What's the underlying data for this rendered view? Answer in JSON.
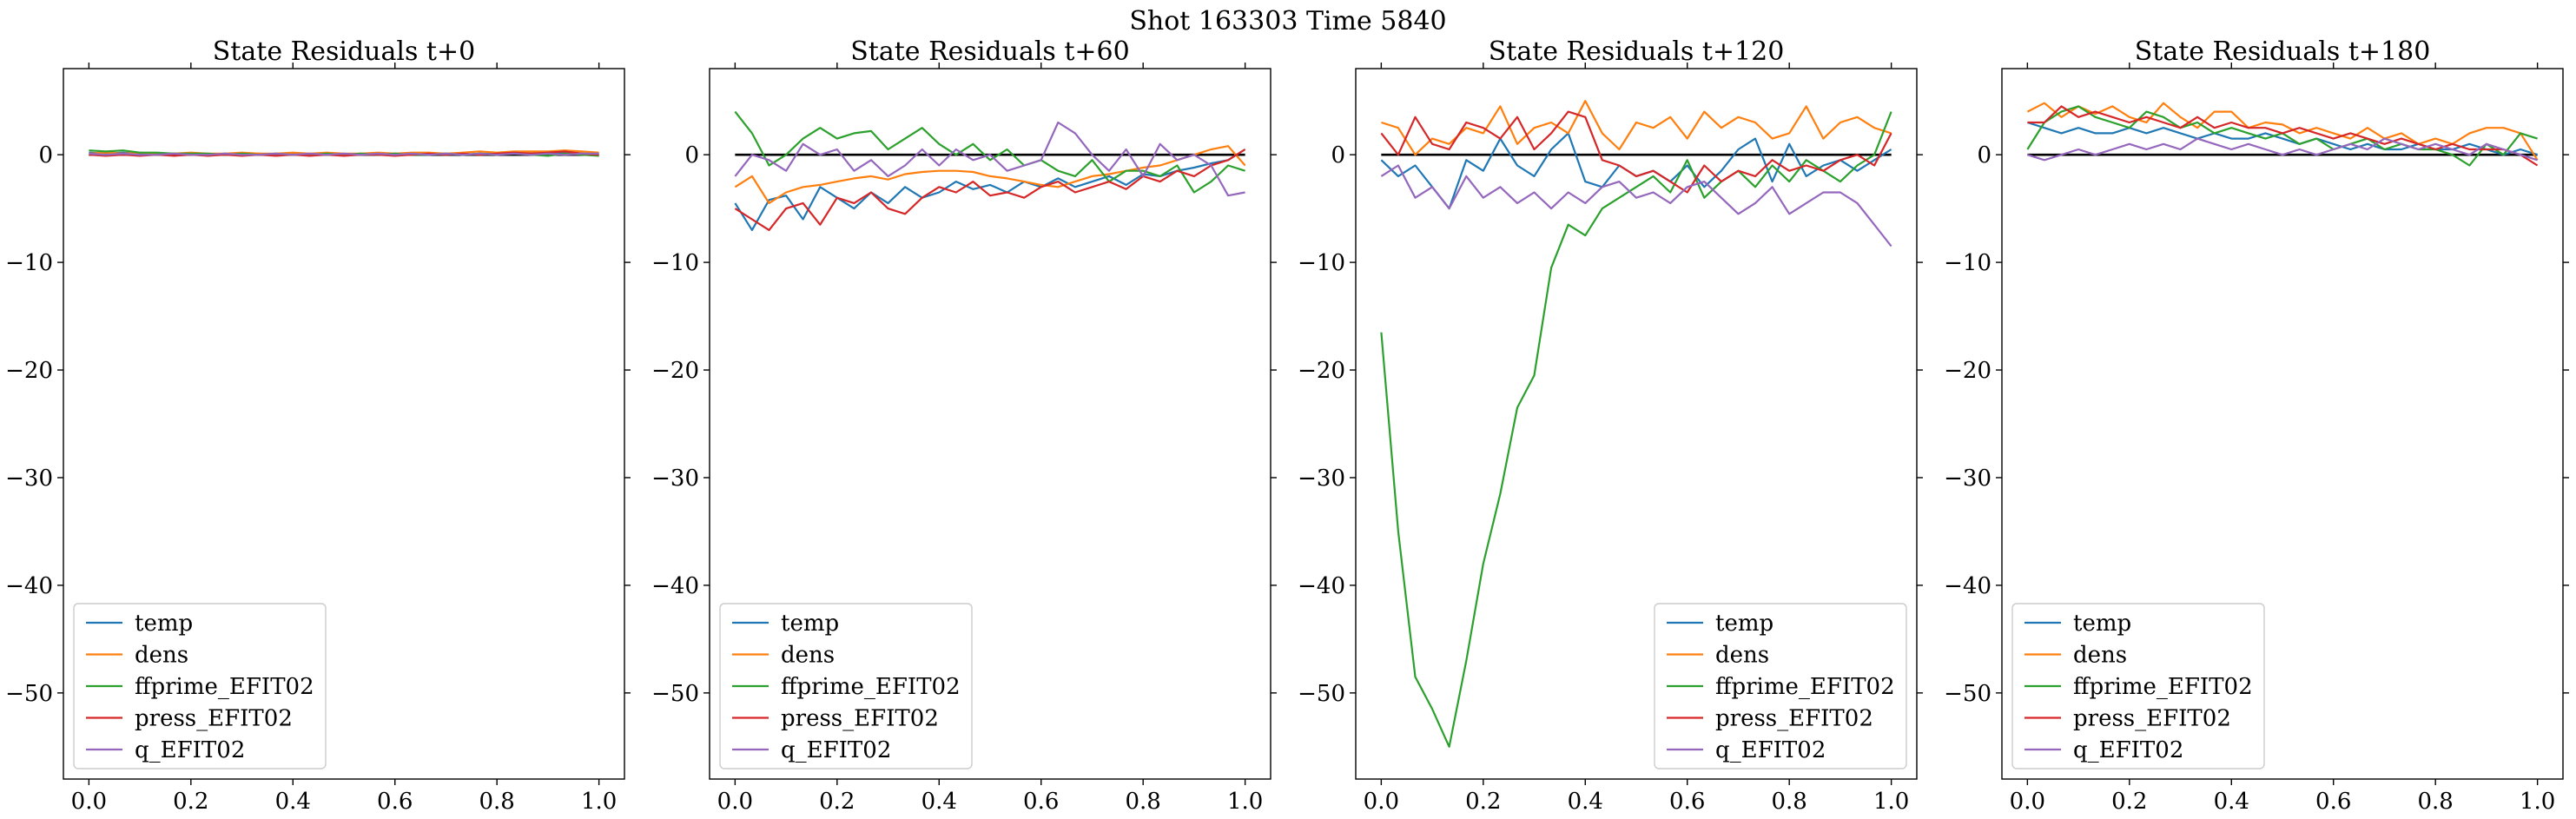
{
  "figure": {
    "suptitle": "Shot 163303   Time 5840"
  },
  "chart_data": [
    {
      "type": "line",
      "title": "State Residuals t+0",
      "xlabel": "",
      "ylabel": "",
      "xlim": [
        -0.05,
        1.05
      ],
      "ylim": [
        -58,
        8
      ],
      "xticks": [
        0.0,
        0.2,
        0.4,
        0.6,
        0.8,
        1.0
      ],
      "xtick_labels": [
        "0.0",
        "0.2",
        "0.4",
        "0.6",
        "0.8",
        "1.0"
      ],
      "yticks": [
        0,
        -10,
        -20,
        -30,
        -40,
        -50
      ],
      "ytick_labels": [
        "0",
        "−10",
        "−20",
        "−30",
        "−40",
        "−50"
      ],
      "grid": false,
      "legend_position": "lower-left",
      "zero_line": true,
      "x": [
        0.0,
        0.0333,
        0.0667,
        0.1,
        0.1333,
        0.1667,
        0.2,
        0.2333,
        0.2667,
        0.3,
        0.3333,
        0.3667,
        0.4,
        0.4333,
        0.4667,
        0.5,
        0.5333,
        0.5667,
        0.6,
        0.6333,
        0.6667,
        0.7,
        0.7333,
        0.7667,
        0.8,
        0.8333,
        0.8667,
        0.9,
        0.9333,
        0.9667,
        1.0
      ],
      "series": [
        {
          "name": "temp",
          "color": "#1f77b4",
          "values": [
            0.2,
            0.1,
            0.2,
            0.1,
            0.0,
            0.1,
            0.1,
            0.0,
            0.1,
            0.0,
            0.1,
            0.0,
            0.1,
            0.0,
            0.1,
            0.0,
            0.1,
            0.0,
            0.1,
            0.0,
            0.1,
            0.1,
            0.0,
            0.1,
            0.1,
            0.2,
            0.1,
            0.2,
            0.2,
            0.1,
            0.1
          ]
        },
        {
          "name": "dens",
          "color": "#ff7f0e",
          "values": [
            0.1,
            0.2,
            0.1,
            0.2,
            0.1,
            0.1,
            0.2,
            0.1,
            0.1,
            0.2,
            0.1,
            0.1,
            0.2,
            0.1,
            0.2,
            0.1,
            0.1,
            0.2,
            0.1,
            0.2,
            0.2,
            0.1,
            0.2,
            0.3,
            0.2,
            0.3,
            0.3,
            0.3,
            0.4,
            0.3,
            0.2
          ]
        },
        {
          "name": "ffprime_EFIT02",
          "color": "#2ca02c",
          "values": [
            0.4,
            0.3,
            0.4,
            0.2,
            0.2,
            0.1,
            0.1,
            0.1,
            0.0,
            0.1,
            0.0,
            0.1,
            0.0,
            0.0,
            0.1,
            0.0,
            0.1,
            0.0,
            0.1,
            0.0,
            0.0,
            0.1,
            0.0,
            0.1,
            0.0,
            0.1,
            0.0,
            -0.1,
            0.1,
            0.0,
            -0.1
          ]
        },
        {
          "name": "press_EFIT02",
          "color": "#d62728",
          "values": [
            0.0,
            -0.1,
            0.0,
            -0.1,
            0.0,
            -0.1,
            0.0,
            -0.1,
            0.0,
            -0.1,
            0.0,
            -0.1,
            0.0,
            -0.1,
            0.0,
            -0.1,
            0.0,
            0.0,
            -0.1,
            0.0,
            0.1,
            0.0,
            0.1,
            0.0,
            0.1,
            0.2,
            0.1,
            0.2,
            0.3,
            0.1,
            0.0
          ]
        },
        {
          "name": "q_EFIT02",
          "color": "#9467bd",
          "values": [
            0.1,
            0.0,
            0.1,
            0.0,
            0.0,
            0.1,
            0.0,
            0.0,
            0.1,
            0.0,
            0.0,
            0.1,
            0.0,
            0.1,
            0.0,
            0.1,
            0.0,
            0.1,
            0.0,
            0.1,
            0.0,
            0.1,
            0.0,
            0.1,
            0.0,
            0.1,
            0.0,
            0.1,
            0.0,
            0.1,
            0.1
          ]
        }
      ]
    },
    {
      "type": "line",
      "title": "State Residuals t+60",
      "xlabel": "",
      "ylabel": "",
      "xlim": [
        -0.05,
        1.05
      ],
      "ylim": [
        -58,
        8
      ],
      "xticks": [
        0.0,
        0.2,
        0.4,
        0.6,
        0.8,
        1.0
      ],
      "xtick_labels": [
        "0.0",
        "0.2",
        "0.4",
        "0.6",
        "0.8",
        "1.0"
      ],
      "yticks": [
        0,
        -10,
        -20,
        -30,
        -40,
        -50
      ],
      "ytick_labels": [
        "0",
        "−10",
        "−20",
        "−30",
        "−40",
        "−50"
      ],
      "grid": false,
      "legend_position": "lower-left",
      "zero_line": true,
      "x": [
        0.0,
        0.0333,
        0.0667,
        0.1,
        0.1333,
        0.1667,
        0.2,
        0.2333,
        0.2667,
        0.3,
        0.3333,
        0.3667,
        0.4,
        0.4333,
        0.4667,
        0.5,
        0.5333,
        0.5667,
        0.6,
        0.6333,
        0.6667,
        0.7,
        0.7333,
        0.7667,
        0.8,
        0.8333,
        0.8667,
        0.9,
        0.9333,
        0.9667,
        1.0
      ],
      "series": [
        {
          "name": "temp",
          "color": "#1f77b4",
          "values": [
            -4.5,
            -7.0,
            -4.2,
            -3.8,
            -6.0,
            -3.0,
            -4.0,
            -5.0,
            -3.5,
            -4.5,
            -3.0,
            -4.0,
            -3.5,
            -2.5,
            -3.2,
            -2.8,
            -3.5,
            -2.5,
            -3.0,
            -2.2,
            -3.0,
            -2.5,
            -2.0,
            -2.8,
            -1.8,
            -2.0,
            -1.5,
            -1.2,
            -0.8,
            -0.5,
            0.5
          ]
        },
        {
          "name": "dens",
          "color": "#ff7f0e",
          "values": [
            -3.0,
            -2.0,
            -4.5,
            -3.5,
            -3.0,
            -2.8,
            -2.5,
            -2.2,
            -2.0,
            -2.3,
            -1.8,
            -1.6,
            -1.5,
            -1.5,
            -1.6,
            -2.0,
            -2.2,
            -2.5,
            -2.8,
            -3.0,
            -2.5,
            -2.0,
            -1.8,
            -1.5,
            -1.2,
            -1.0,
            -0.5,
            0.0,
            0.5,
            0.8,
            -1.0
          ]
        },
        {
          "name": "ffprime_EFIT02",
          "color": "#2ca02c",
          "values": [
            4.0,
            2.0,
            -1.0,
            0.0,
            1.5,
            2.5,
            1.5,
            2.0,
            2.2,
            0.5,
            1.5,
            2.5,
            1.0,
            0.0,
            1.0,
            -0.5,
            0.5,
            -1.0,
            -0.5,
            -1.5,
            -2.0,
            -0.5,
            -2.5,
            -1.5,
            -1.5,
            -2.0,
            -1.0,
            -3.5,
            -2.5,
            -1.0,
            -1.5
          ]
        },
        {
          "name": "press_EFIT02",
          "color": "#d62728",
          "values": [
            -5.0,
            -6.0,
            -7.0,
            -5.0,
            -4.5,
            -6.5,
            -4.0,
            -4.5,
            -3.5,
            -5.0,
            -5.5,
            -4.0,
            -3.0,
            -3.5,
            -2.5,
            -3.8,
            -3.5,
            -4.0,
            -3.0,
            -2.5,
            -3.5,
            -3.0,
            -2.5,
            -3.2,
            -2.0,
            -2.5,
            -1.5,
            -2.0,
            -1.0,
            -0.5,
            0.5
          ]
        },
        {
          "name": "q_EFIT02",
          "color": "#9467bd",
          "values": [
            -2.0,
            0.0,
            -0.5,
            -1.5,
            1.0,
            0.0,
            0.5,
            -1.5,
            -0.5,
            -2.0,
            -1.0,
            0.5,
            -1.0,
            0.5,
            -0.5,
            0.0,
            -1.5,
            -1.0,
            -0.5,
            3.0,
            2.0,
            0.0,
            -1.5,
            0.5,
            -2.0,
            1.0,
            -0.5,
            0.0,
            -1.0,
            -3.8,
            -3.5
          ]
        }
      ]
    },
    {
      "type": "line",
      "title": "State Residuals t+120",
      "xlabel": "",
      "ylabel": "",
      "xlim": [
        -0.05,
        1.05
      ],
      "ylim": [
        -58,
        8
      ],
      "xticks": [
        0.0,
        0.2,
        0.4,
        0.6,
        0.8,
        1.0
      ],
      "xtick_labels": [
        "0.0",
        "0.2",
        "0.4",
        "0.6",
        "0.8",
        "1.0"
      ],
      "yticks": [
        0,
        -10,
        -20,
        -30,
        -40,
        -50
      ],
      "ytick_labels": [
        "0",
        "−10",
        "−20",
        "−30",
        "−40",
        "−50"
      ],
      "grid": false,
      "legend_position": "lower-right",
      "zero_line": true,
      "x": [
        0.0,
        0.0333,
        0.0667,
        0.1,
        0.1333,
        0.1667,
        0.2,
        0.2333,
        0.2667,
        0.3,
        0.3333,
        0.3667,
        0.4,
        0.4333,
        0.4667,
        0.5,
        0.5333,
        0.5667,
        0.6,
        0.6333,
        0.6667,
        0.7,
        0.7333,
        0.7667,
        0.8,
        0.8333,
        0.8667,
        0.9,
        0.9333,
        0.9667,
        1.0
      ],
      "series": [
        {
          "name": "temp",
          "color": "#1f77b4",
          "values": [
            -0.5,
            -2.0,
            -1.0,
            -3.0,
            -5.0,
            -0.5,
            -1.5,
            1.5,
            -1.0,
            -2.0,
            0.5,
            2.0,
            -2.5,
            -3.0,
            -1.0,
            -2.0,
            -1.5,
            -2.5,
            -1.0,
            -3.0,
            -1.5,
            0.5,
            1.5,
            -2.5,
            1.0,
            -2.0,
            -1.0,
            -0.5,
            -1.5,
            -0.5,
            0.5
          ]
        },
        {
          "name": "dens",
          "color": "#ff7f0e",
          "values": [
            3.0,
            2.5,
            0.0,
            1.5,
            1.0,
            2.5,
            2.0,
            4.5,
            1.0,
            2.5,
            3.0,
            2.0,
            5.0,
            2.0,
            0.5,
            3.0,
            2.5,
            3.5,
            1.5,
            4.0,
            2.5,
            3.5,
            3.0,
            1.5,
            2.0,
            4.5,
            1.5,
            3.0,
            3.5,
            2.5,
            2.0
          ]
        },
        {
          "name": "ffprime_EFIT02",
          "color": "#2ca02c",
          "values": [
            -16.5,
            -35.0,
            -48.5,
            -51.5,
            -55.0,
            -47.0,
            -38.0,
            -31.5,
            -23.5,
            -20.5,
            -10.5,
            -6.5,
            -7.5,
            -5.0,
            -4.0,
            -3.0,
            -2.0,
            -3.5,
            -0.5,
            -4.0,
            -2.5,
            -1.5,
            -3.0,
            -1.0,
            -2.5,
            -0.5,
            -1.5,
            -2.5,
            -1.0,
            0.0,
            4.0
          ]
        },
        {
          "name": "press_EFIT02",
          "color": "#d62728",
          "values": [
            2.0,
            0.0,
            3.5,
            1.0,
            0.5,
            3.0,
            2.5,
            1.5,
            3.5,
            0.5,
            2.0,
            4.0,
            3.5,
            -0.5,
            -1.0,
            -2.0,
            -1.5,
            -2.5,
            -3.5,
            -1.0,
            -2.5,
            -1.5,
            -2.0,
            -0.5,
            -1.5,
            -1.0,
            -1.5,
            -0.5,
            0.0,
            -1.0,
            2.0
          ]
        },
        {
          "name": "q_EFIT02",
          "color": "#9467bd",
          "values": [
            -2.0,
            -1.0,
            -4.0,
            -3.0,
            -5.0,
            -2.0,
            -4.0,
            -3.0,
            -4.5,
            -3.5,
            -5.0,
            -3.5,
            -4.5,
            -3.0,
            -2.5,
            -4.0,
            -3.5,
            -4.5,
            -3.0,
            -2.5,
            -4.0,
            -5.5,
            -4.5,
            -3.0,
            -5.5,
            -4.5,
            -3.5,
            -3.5,
            -4.5,
            -6.5,
            -8.5
          ]
        }
      ]
    },
    {
      "type": "line",
      "title": "State Residuals t+180",
      "xlabel": "",
      "ylabel": "",
      "xlim": [
        -0.05,
        1.05
      ],
      "ylim": [
        -58,
        8
      ],
      "xticks": [
        0.0,
        0.2,
        0.4,
        0.6,
        0.8,
        1.0
      ],
      "xtick_labels": [
        "0.0",
        "0.2",
        "0.4",
        "0.6",
        "0.8",
        "1.0"
      ],
      "yticks": [
        0,
        -10,
        -20,
        -30,
        -40,
        -50
      ],
      "ytick_labels": [
        "0",
        "−10",
        "−20",
        "−30",
        "−40",
        "−50"
      ],
      "grid": false,
      "legend_position": "lower-left",
      "zero_line": true,
      "x": [
        0.0,
        0.0333,
        0.0667,
        0.1,
        0.1333,
        0.1667,
        0.2,
        0.2333,
        0.2667,
        0.3,
        0.3333,
        0.3667,
        0.4,
        0.4333,
        0.4667,
        0.5,
        0.5333,
        0.5667,
        0.6,
        0.6333,
        0.6667,
        0.7,
        0.7333,
        0.7667,
        0.8,
        0.8333,
        0.8667,
        0.9,
        0.9333,
        0.9667,
        1.0
      ],
      "series": [
        {
          "name": "temp",
          "color": "#1f77b4",
          "values": [
            3.0,
            2.5,
            2.0,
            2.5,
            2.0,
            2.0,
            2.5,
            2.0,
            2.5,
            2.0,
            1.5,
            2.0,
            1.5,
            1.5,
            2.0,
            1.5,
            1.0,
            1.5,
            1.0,
            0.5,
            1.0,
            0.5,
            0.5,
            1.0,
            0.5,
            0.5,
            1.0,
            0.5,
            0.0,
            0.5,
            0.0
          ]
        },
        {
          "name": "dens",
          "color": "#ff7f0e",
          "values": [
            4.0,
            4.8,
            3.5,
            4.5,
            3.8,
            4.5,
            3.5,
            3.0,
            4.8,
            3.5,
            2.5,
            4.0,
            4.0,
            2.5,
            3.0,
            2.8,
            2.0,
            2.5,
            2.0,
            1.5,
            2.5,
            1.5,
            2.0,
            1.0,
            1.5,
            1.0,
            2.0,
            2.5,
            2.5,
            2.0,
            -0.5
          ]
        },
        {
          "name": "ffprime_EFIT02",
          "color": "#2ca02c",
          "values": [
            0.5,
            3.0,
            4.0,
            4.5,
            3.5,
            3.0,
            2.5,
            4.0,
            3.5,
            2.5,
            3.0,
            2.0,
            2.5,
            2.0,
            1.5,
            2.0,
            1.0,
            1.5,
            0.5,
            1.0,
            1.5,
            0.5,
            1.0,
            0.5,
            0.5,
            0.0,
            -1.0,
            1.0,
            0.0,
            2.0,
            1.5
          ]
        },
        {
          "name": "press_EFIT02",
          "color": "#d62728",
          "values": [
            3.0,
            3.0,
            4.5,
            3.5,
            4.0,
            3.5,
            3.0,
            3.5,
            3.0,
            2.5,
            3.5,
            2.5,
            3.0,
            2.5,
            2.5,
            2.0,
            2.5,
            2.0,
            1.5,
            2.0,
            1.5,
            1.0,
            1.5,
            1.0,
            0.5,
            1.0,
            0.5,
            0.5,
            0.5,
            0.0,
            -1.0
          ]
        },
        {
          "name": "q_EFIT02",
          "color": "#9467bd",
          "values": [
            0.0,
            -0.5,
            0.0,
            0.5,
            0.0,
            0.5,
            1.0,
            0.5,
            1.0,
            0.5,
            1.5,
            1.0,
            0.5,
            1.0,
            0.5,
            0.0,
            0.5,
            0.0,
            0.5,
            1.0,
            0.5,
            1.5,
            1.0,
            0.5,
            1.0,
            0.5,
            0.0,
            1.0,
            0.5,
            0.0,
            -0.5
          ]
        }
      ]
    }
  ]
}
